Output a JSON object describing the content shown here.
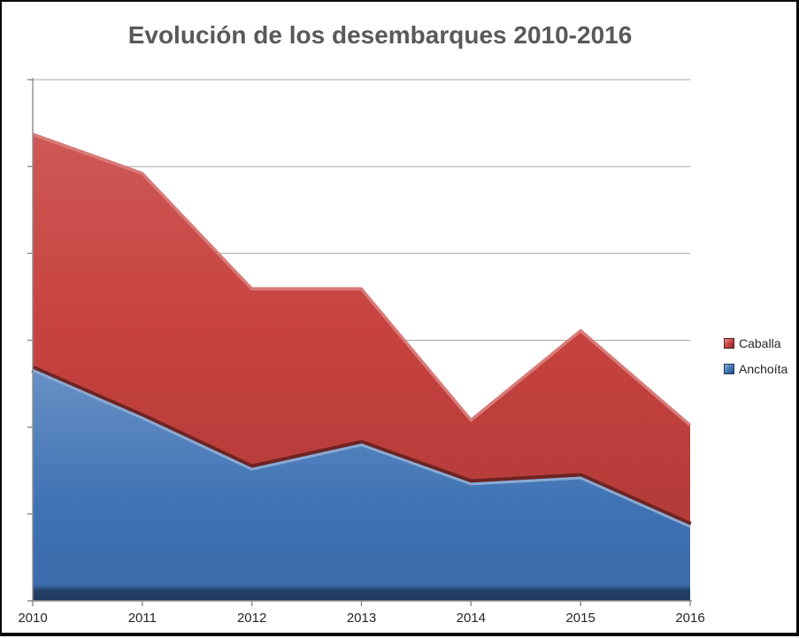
{
  "title": "Evolución de los desembarques 2010-2016",
  "legend": {
    "items": [
      {
        "label": "Caballa",
        "color": "#C7423F"
      },
      {
        "label": "Anchoíta",
        "color": "#3E72B4"
      }
    ]
  },
  "colors": {
    "caballa_fill": "#C7423F",
    "anchoita_fill": "#3E72B4",
    "title_text": "#595959",
    "axis_line": "#8C8C8C",
    "gridline": "#A6A6A6",
    "axis_label_text": "#262626",
    "frame_border": "#0A0A0A",
    "background": "#FFFFFF"
  },
  "chart_data": {
    "type": "area",
    "stacked": true,
    "title": "Evolución de los desembarques 2010-2016",
    "categories": [
      "2010",
      "2011",
      "2012",
      "2013",
      "2014",
      "2015",
      "2016"
    ],
    "series": [
      {
        "name": "Anchoíta",
        "color": "#3E72B4",
        "values": [
          26.7,
          21.2,
          15.3,
          18.1,
          13.6,
          14.3,
          8.7
        ]
      },
      {
        "name": "Caballa",
        "color": "#C7423F",
        "values": [
          27.2,
          28.2,
          20.8,
          18.0,
          7.4,
          17.0,
          11.7
        ]
      }
    ],
    "stacked_totals": [
      53.9,
      49.4,
      36.1,
      36.1,
      21.0,
      31.3,
      20.4
    ],
    "xlabel": "",
    "ylabel": "",
    "ylim": [
      0,
      60
    ],
    "y_gridline_step": 10,
    "y_tick_labels_visible": false,
    "grid": true,
    "legend_position": "right"
  }
}
